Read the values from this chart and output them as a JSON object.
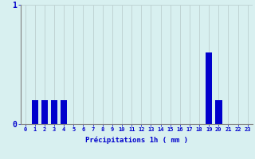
{
  "hours": [
    0,
    1,
    2,
    3,
    4,
    5,
    6,
    7,
    8,
    9,
    10,
    11,
    12,
    13,
    14,
    15,
    16,
    17,
    18,
    19,
    20,
    21,
    22,
    23
  ],
  "values": [
    0,
    0.2,
    0.2,
    0.2,
    0.2,
    0,
    0,
    0,
    0,
    0,
    0,
    0,
    0,
    0,
    0,
    0,
    0,
    0,
    0,
    0.6,
    0.2,
    0,
    0,
    0
  ],
  "bar_color": "#0000cc",
  "background_color": "#d8f0f0",
  "grid_color": "#c0d4d4",
  "axis_color": "#808080",
  "text_color": "#0000cc",
  "xlabel": "Précipitations 1h ( mm )",
  "ylim": [
    0,
    1.0
  ],
  "yticks": [
    0,
    1
  ],
  "figsize": [
    3.2,
    2.0
  ],
  "dpi": 100
}
